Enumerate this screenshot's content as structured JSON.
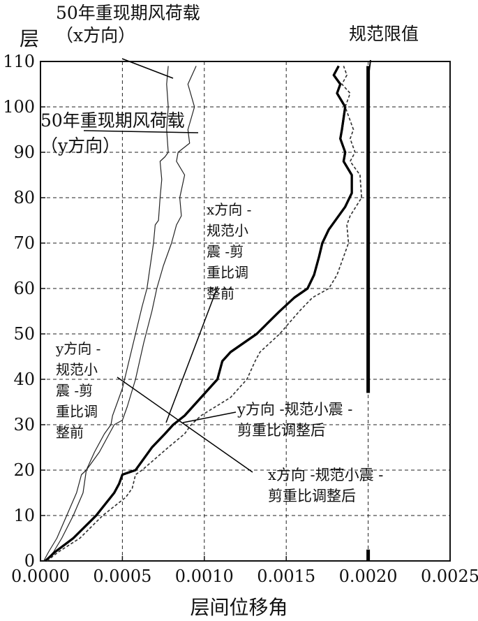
{
  "chart_data": {
    "type": "line",
    "xlabel": "层间位移角",
    "ylabel": "层",
    "xlim": [
      0,
      0.0025
    ],
    "ylim": [
      0,
      110
    ],
    "x_ticks": [
      "0.0000",
      "0.0005",
      "0.0010",
      "0.0015",
      "0.0020",
      "0.0025"
    ],
    "y_ticks": [
      "0",
      "10",
      "20",
      "30",
      "40",
      "50",
      "60",
      "70",
      "80",
      "90",
      "100",
      "110"
    ],
    "grid": true,
    "limit_label": "规范限值",
    "limit_value": 0.002,
    "series": [
      {
        "name": "50年重现期风荷载（y方向）",
        "style": "thin",
        "points": [
          [
            2e-05,
            0
          ],
          [
            5e-05,
            2
          ],
          [
            0.0001,
            5
          ],
          [
            0.00016,
            10
          ],
          [
            0.00022,
            15
          ],
          [
            0.00025,
            19
          ],
          [
            0.00028,
            20
          ],
          [
            0.00033,
            24
          ],
          [
            0.00039,
            28
          ],
          [
            0.00043,
            30
          ],
          [
            0.00044,
            32
          ],
          [
            0.00047,
            35
          ],
          [
            0.0005,
            38
          ],
          [
            0.00054,
            44
          ],
          [
            0.00058,
            50
          ],
          [
            0.00062,
            56
          ],
          [
            0.00065,
            60
          ],
          [
            0.00067,
            65
          ],
          [
            0.00069,
            70
          ],
          [
            0.0007,
            74
          ],
          [
            0.00072,
            75
          ],
          [
            0.00073,
            80
          ],
          [
            0.00074,
            84
          ],
          [
            0.00073,
            88
          ],
          [
            0.00076,
            89
          ],
          [
            0.00078,
            90
          ],
          [
            0.00077,
            95
          ],
          [
            0.00078,
            100
          ],
          [
            0.00077,
            105
          ],
          [
            0.00078,
            109
          ]
        ]
      },
      {
        "name": "50年重现期风荷载（x方向）",
        "style": "thin",
        "points": [
          [
            3e-05,
            0
          ],
          [
            8e-05,
            2
          ],
          [
            0.00013,
            5
          ],
          [
            0.0002,
            10
          ],
          [
            0.00026,
            15
          ],
          [
            0.00028,
            20
          ],
          [
            0.00036,
            24
          ],
          [
            0.00042,
            28
          ],
          [
            0.00045,
            30
          ],
          [
            0.0005,
            31
          ],
          [
            0.00053,
            34
          ],
          [
            0.00058,
            40
          ],
          [
            0.00063,
            48
          ],
          [
            0.00068,
            55
          ],
          [
            0.00071,
            60
          ],
          [
            0.00075,
            65
          ],
          [
            0.0008,
            70
          ],
          [
            0.00083,
            74
          ],
          [
            0.00086,
            76
          ],
          [
            0.00085,
            80
          ],
          [
            0.00088,
            85
          ],
          [
            0.00083,
            88
          ],
          [
            0.00084,
            90
          ],
          [
            0.00091,
            92
          ],
          [
            0.0009,
            95
          ],
          [
            0.00094,
            100
          ],
          [
            0.0009,
            105
          ],
          [
            0.00095,
            109
          ]
        ]
      },
      {
        "name": "y方向-规范小震-剪重比调整前",
        "style": "thick",
        "points": [
          [
            3e-05,
            0
          ],
          [
            9e-05,
            2
          ],
          [
            0.0002,
            5
          ],
          [
            0.00034,
            10
          ],
          [
            0.00045,
            15
          ],
          [
            0.00048,
            17
          ],
          [
            0.0005,
            19
          ],
          [
            0.00058,
            20
          ],
          [
            0.00068,
            25
          ],
          [
            0.00076,
            28
          ],
          [
            0.00081,
            30
          ],
          [
            0.00088,
            32
          ],
          [
            0.00098,
            36
          ],
          [
            0.00108,
            40
          ],
          [
            0.00111,
            44
          ],
          [
            0.00116,
            46
          ],
          [
            0.00132,
            50
          ],
          [
            0.00146,
            55
          ],
          [
            0.00155,
            58
          ],
          [
            0.00163,
            60
          ],
          [
            0.00167,
            63
          ],
          [
            0.0017,
            67
          ],
          [
            0.00172,
            70
          ],
          [
            0.00176,
            73
          ],
          [
            0.0018,
            75
          ],
          [
            0.00186,
            78
          ],
          [
            0.0019,
            81
          ],
          [
            0.0019,
            85
          ],
          [
            0.00185,
            88
          ],
          [
            0.00186,
            90
          ],
          [
            0.00183,
            93
          ],
          [
            0.00184,
            95
          ],
          [
            0.00186,
            100
          ],
          [
            0.00181,
            103
          ],
          [
            0.00183,
            105
          ],
          [
            0.00179,
            107
          ],
          [
            0.00182,
            109
          ]
        ]
      },
      {
        "name": "x方向-规范小震-剪重比调整前",
        "style": "dashed",
        "points": [
          [
            4e-05,
            0
          ],
          [
            0.00011,
            2
          ],
          [
            0.00024,
            5
          ],
          [
            0.00038,
            10
          ],
          [
            0.00052,
            14
          ],
          [
            0.00056,
            16
          ],
          [
            0.00058,
            19
          ],
          [
            0.00062,
            20
          ],
          [
            0.00078,
            25
          ],
          [
            0.00088,
            28
          ],
          [
            0.00092,
            30
          ],
          [
            0.00098,
            32
          ],
          [
            0.00116,
            36
          ],
          [
            0.00126,
            40
          ],
          [
            0.00131,
            44
          ],
          [
            0.00134,
            46
          ],
          [
            0.00146,
            50
          ],
          [
            0.00158,
            55
          ],
          [
            0.00166,
            58
          ],
          [
            0.00176,
            60
          ],
          [
            0.00181,
            63
          ],
          [
            0.00185,
            67
          ],
          [
            0.00188,
            70
          ],
          [
            0.00187,
            74
          ],
          [
            0.00189,
            76
          ],
          [
            0.00196,
            80
          ],
          [
            0.00195,
            85
          ],
          [
            0.00189,
            88
          ],
          [
            0.00192,
            90
          ],
          [
            0.00189,
            93
          ],
          [
            0.00191,
            95
          ],
          [
            0.00186,
            100
          ],
          [
            0.00189,
            103
          ],
          [
            0.00184,
            105
          ],
          [
            0.00187,
            107
          ],
          [
            0.00185,
            109
          ]
        ]
      },
      {
        "name": "y方向-规范小震-剪重比调整后",
        "style": "thick",
        "points": [
          [
            3e-05,
            0
          ],
          [
            9e-05,
            2
          ],
          [
            0.0002,
            5
          ],
          [
            0.00034,
            10
          ],
          [
            0.00045,
            15
          ],
          [
            0.00048,
            17
          ],
          [
            0.0005,
            19
          ],
          [
            0.00058,
            20
          ],
          [
            0.00068,
            25
          ],
          [
            0.00076,
            28
          ],
          [
            0.00081,
            30
          ],
          [
            0.00088,
            32
          ],
          [
            0.00098,
            36
          ],
          [
            0.00108,
            40
          ],
          [
            0.00111,
            44
          ],
          [
            0.00116,
            46
          ],
          [
            0.00132,
            50
          ],
          [
            0.00146,
            55
          ],
          [
            0.00155,
            58
          ],
          [
            0.00163,
            60
          ],
          [
            0.00167,
            63
          ],
          [
            0.0017,
            67
          ],
          [
            0.00172,
            70
          ],
          [
            0.00176,
            73
          ],
          [
            0.0018,
            75
          ],
          [
            0.00186,
            78
          ],
          [
            0.0019,
            81
          ],
          [
            0.0019,
            85
          ],
          [
            0.00185,
            88
          ],
          [
            0.00186,
            90
          ],
          [
            0.00183,
            93
          ],
          [
            0.00184,
            95
          ],
          [
            0.00186,
            100
          ],
          [
            0.00181,
            103
          ],
          [
            0.00183,
            105
          ],
          [
            0.00179,
            107
          ],
          [
            0.00182,
            109
          ]
        ]
      },
      {
        "name": "x方向-规范小震-剪重比调整后",
        "style": "dashed",
        "points": [
          [
            4e-05,
            0
          ],
          [
            0.00011,
            2
          ],
          [
            0.00024,
            5
          ],
          [
            0.00038,
            10
          ],
          [
            0.00052,
            14
          ],
          [
            0.00056,
            16
          ],
          [
            0.00058,
            19
          ],
          [
            0.00062,
            20
          ],
          [
            0.00078,
            25
          ],
          [
            0.00088,
            28
          ],
          [
            0.00092,
            30
          ],
          [
            0.00098,
            32
          ],
          [
            0.00116,
            36
          ],
          [
            0.00126,
            40
          ],
          [
            0.00131,
            44
          ],
          [
            0.00134,
            46
          ],
          [
            0.00146,
            50
          ],
          [
            0.00158,
            55
          ],
          [
            0.00166,
            58
          ],
          [
            0.00176,
            60
          ],
          [
            0.00181,
            63
          ],
          [
            0.00185,
            67
          ],
          [
            0.00188,
            70
          ],
          [
            0.00187,
            74
          ],
          [
            0.00189,
            76
          ],
          [
            0.00196,
            80
          ],
          [
            0.00195,
            85
          ],
          [
            0.00189,
            88
          ],
          [
            0.00192,
            90
          ],
          [
            0.00189,
            93
          ],
          [
            0.00191,
            95
          ],
          [
            0.00186,
            100
          ],
          [
            0.00189,
            103
          ],
          [
            0.00184,
            105
          ],
          [
            0.00187,
            107
          ],
          [
            0.00185,
            109
          ]
        ]
      }
    ],
    "annotations": {
      "wind_x_line1": "50年重现期风荷载",
      "wind_x_line2": "（x方向）",
      "wind_y_line1": "50年重现期风荷载",
      "wind_y_line2": "（y方向）",
      "x_before_lines": [
        "x方向 -",
        "规范小",
        "震 -剪",
        "重比调",
        "整前"
      ],
      "y_before_lines": [
        "y方向 -",
        "规范小",
        "震 -剪",
        "重比调",
        "整前"
      ],
      "y_after_line1": "y方向 -规范小震 -",
      "y_after_line2": "剪重比调整后",
      "x_after_line1": "x方向 -规范小震 -",
      "x_after_line2": "剪重比调整后"
    }
  }
}
